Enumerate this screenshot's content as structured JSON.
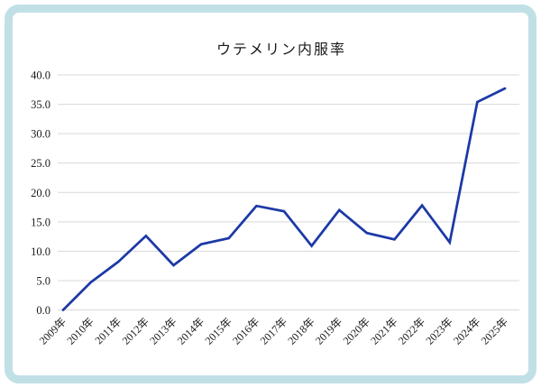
{
  "chart_data": {
    "type": "line",
    "title": "ウテメリン内服率",
    "categories": [
      "2009年",
      "2010年",
      "2011年",
      "2012年",
      "2013年",
      "2014年",
      "2015年",
      "2016年",
      "2017年",
      "2018年",
      "2019年",
      "2020年",
      "2021年",
      "2022年",
      "2023年",
      "2024年",
      "2025年"
    ],
    "values": [
      0.0,
      4.7,
      8.2,
      12.6,
      7.6,
      11.2,
      12.2,
      17.7,
      16.8,
      10.9,
      17.0,
      13.1,
      12.0,
      17.8,
      11.5,
      35.4,
      37.7
    ],
    "xlabel": "",
    "ylabel": "",
    "ylim": [
      0,
      40
    ],
    "ytick_step": 5,
    "ytick_labels": [
      "0.0",
      "5.0",
      "10.0",
      "15.0",
      "20.0",
      "25.0",
      "30.0",
      "35.0",
      "40.0"
    ],
    "grid": true,
    "legend": "none",
    "colors": {
      "line": "#1c39a6",
      "gridline": "#d9d9d9",
      "axis_text": "#1a1a1a",
      "frame_border": "#c0e0e6",
      "background": "#ffffff"
    }
  }
}
